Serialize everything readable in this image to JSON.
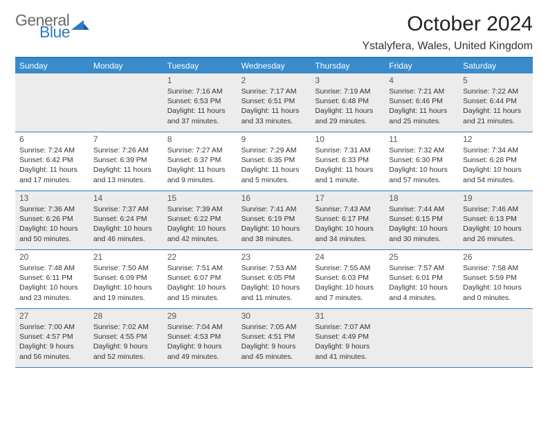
{
  "brand": {
    "general": "General",
    "blue": "Blue"
  },
  "title": "October 2024",
  "location": "Ystalyfera, Wales, United Kingdom",
  "colors": {
    "accent": "#2b7ac2",
    "header_bg": "#3a8bc9",
    "shade": "#ececec",
    "text": "#222222",
    "muted": "#6a6a6a"
  },
  "dow": [
    "Sunday",
    "Monday",
    "Tuesday",
    "Wednesday",
    "Thursday",
    "Friday",
    "Saturday"
  ],
  "weeks": [
    [
      null,
      null,
      {
        "n": "1",
        "sr": "Sunrise: 7:16 AM",
        "ss": "Sunset: 6:53 PM",
        "d1": "Daylight: 11 hours",
        "d2": "and 37 minutes."
      },
      {
        "n": "2",
        "sr": "Sunrise: 7:17 AM",
        "ss": "Sunset: 6:51 PM",
        "d1": "Daylight: 11 hours",
        "d2": "and 33 minutes."
      },
      {
        "n": "3",
        "sr": "Sunrise: 7:19 AM",
        "ss": "Sunset: 6:48 PM",
        "d1": "Daylight: 11 hours",
        "d2": "and 29 minutes."
      },
      {
        "n": "4",
        "sr": "Sunrise: 7:21 AM",
        "ss": "Sunset: 6:46 PM",
        "d1": "Daylight: 11 hours",
        "d2": "and 25 minutes."
      },
      {
        "n": "5",
        "sr": "Sunrise: 7:22 AM",
        "ss": "Sunset: 6:44 PM",
        "d1": "Daylight: 11 hours",
        "d2": "and 21 minutes."
      }
    ],
    [
      {
        "n": "6",
        "sr": "Sunrise: 7:24 AM",
        "ss": "Sunset: 6:42 PM",
        "d1": "Daylight: 11 hours",
        "d2": "and 17 minutes."
      },
      {
        "n": "7",
        "sr": "Sunrise: 7:26 AM",
        "ss": "Sunset: 6:39 PM",
        "d1": "Daylight: 11 hours",
        "d2": "and 13 minutes."
      },
      {
        "n": "8",
        "sr": "Sunrise: 7:27 AM",
        "ss": "Sunset: 6:37 PM",
        "d1": "Daylight: 11 hours",
        "d2": "and 9 minutes."
      },
      {
        "n": "9",
        "sr": "Sunrise: 7:29 AM",
        "ss": "Sunset: 6:35 PM",
        "d1": "Daylight: 11 hours",
        "d2": "and 5 minutes."
      },
      {
        "n": "10",
        "sr": "Sunrise: 7:31 AM",
        "ss": "Sunset: 6:33 PM",
        "d1": "Daylight: 11 hours",
        "d2": "and 1 minute."
      },
      {
        "n": "11",
        "sr": "Sunrise: 7:32 AM",
        "ss": "Sunset: 6:30 PM",
        "d1": "Daylight: 10 hours",
        "d2": "and 57 minutes."
      },
      {
        "n": "12",
        "sr": "Sunrise: 7:34 AM",
        "ss": "Sunset: 6:28 PM",
        "d1": "Daylight: 10 hours",
        "d2": "and 54 minutes."
      }
    ],
    [
      {
        "n": "13",
        "sr": "Sunrise: 7:36 AM",
        "ss": "Sunset: 6:26 PM",
        "d1": "Daylight: 10 hours",
        "d2": "and 50 minutes."
      },
      {
        "n": "14",
        "sr": "Sunrise: 7:37 AM",
        "ss": "Sunset: 6:24 PM",
        "d1": "Daylight: 10 hours",
        "d2": "and 46 minutes."
      },
      {
        "n": "15",
        "sr": "Sunrise: 7:39 AM",
        "ss": "Sunset: 6:22 PM",
        "d1": "Daylight: 10 hours",
        "d2": "and 42 minutes."
      },
      {
        "n": "16",
        "sr": "Sunrise: 7:41 AM",
        "ss": "Sunset: 6:19 PM",
        "d1": "Daylight: 10 hours",
        "d2": "and 38 minutes."
      },
      {
        "n": "17",
        "sr": "Sunrise: 7:43 AM",
        "ss": "Sunset: 6:17 PM",
        "d1": "Daylight: 10 hours",
        "d2": "and 34 minutes."
      },
      {
        "n": "18",
        "sr": "Sunrise: 7:44 AM",
        "ss": "Sunset: 6:15 PM",
        "d1": "Daylight: 10 hours",
        "d2": "and 30 minutes."
      },
      {
        "n": "19",
        "sr": "Sunrise: 7:46 AM",
        "ss": "Sunset: 6:13 PM",
        "d1": "Daylight: 10 hours",
        "d2": "and 26 minutes."
      }
    ],
    [
      {
        "n": "20",
        "sr": "Sunrise: 7:48 AM",
        "ss": "Sunset: 6:11 PM",
        "d1": "Daylight: 10 hours",
        "d2": "and 23 minutes."
      },
      {
        "n": "21",
        "sr": "Sunrise: 7:50 AM",
        "ss": "Sunset: 6:09 PM",
        "d1": "Daylight: 10 hours",
        "d2": "and 19 minutes."
      },
      {
        "n": "22",
        "sr": "Sunrise: 7:51 AM",
        "ss": "Sunset: 6:07 PM",
        "d1": "Daylight: 10 hours",
        "d2": "and 15 minutes."
      },
      {
        "n": "23",
        "sr": "Sunrise: 7:53 AM",
        "ss": "Sunset: 6:05 PM",
        "d1": "Daylight: 10 hours",
        "d2": "and 11 minutes."
      },
      {
        "n": "24",
        "sr": "Sunrise: 7:55 AM",
        "ss": "Sunset: 6:03 PM",
        "d1": "Daylight: 10 hours",
        "d2": "and 7 minutes."
      },
      {
        "n": "25",
        "sr": "Sunrise: 7:57 AM",
        "ss": "Sunset: 6:01 PM",
        "d1": "Daylight: 10 hours",
        "d2": "and 4 minutes."
      },
      {
        "n": "26",
        "sr": "Sunrise: 7:58 AM",
        "ss": "Sunset: 5:59 PM",
        "d1": "Daylight: 10 hours",
        "d2": "and 0 minutes."
      }
    ],
    [
      {
        "n": "27",
        "sr": "Sunrise: 7:00 AM",
        "ss": "Sunset: 4:57 PM",
        "d1": "Daylight: 9 hours",
        "d2": "and 56 minutes."
      },
      {
        "n": "28",
        "sr": "Sunrise: 7:02 AM",
        "ss": "Sunset: 4:55 PM",
        "d1": "Daylight: 9 hours",
        "d2": "and 52 minutes."
      },
      {
        "n": "29",
        "sr": "Sunrise: 7:04 AM",
        "ss": "Sunset: 4:53 PM",
        "d1": "Daylight: 9 hours",
        "d2": "and 49 minutes."
      },
      {
        "n": "30",
        "sr": "Sunrise: 7:05 AM",
        "ss": "Sunset: 4:51 PM",
        "d1": "Daylight: 9 hours",
        "d2": "and 45 minutes."
      },
      {
        "n": "31",
        "sr": "Sunrise: 7:07 AM",
        "ss": "Sunset: 4:49 PM",
        "d1": "Daylight: 9 hours",
        "d2": "and 41 minutes."
      },
      null,
      null
    ]
  ],
  "shaded_weeks": [
    0,
    2,
    4
  ]
}
